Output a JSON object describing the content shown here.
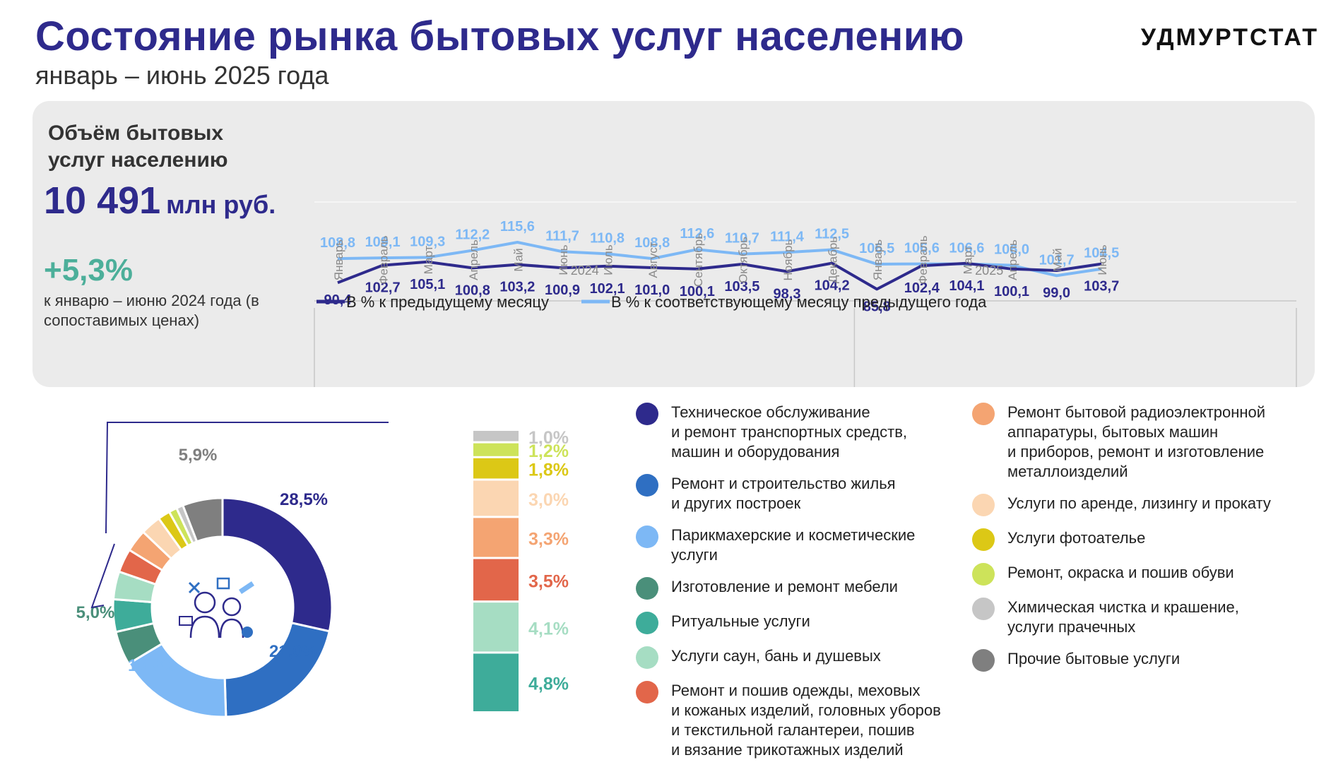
{
  "header": {
    "title": "Состояние рынка бытовых услуг населению",
    "subtitle": "январь – июнь 2025 года",
    "logo": "УДМУРТСТАТ"
  },
  "kpi": {
    "title": "Объём бытовых услуг населению",
    "value": "10 491",
    "unit": "млн руб.",
    "growth": "+5,3%",
    "note": "к январю – июню 2024 года (в сопоставимых ценах)"
  },
  "chart_data": [
    {
      "type": "line",
      "categories": [
        "Январь",
        "Февраль",
        "Март",
        "Апрель",
        "Май",
        "Июнь",
        "Июль",
        "Август",
        "Сентябрь",
        "Октябрь",
        "Ноябрь",
        "Декабрь",
        "Январь",
        "Февраль",
        "Март",
        "Апрель",
        "Май",
        "Июнь"
      ],
      "groups": [
        {
          "label": "2024",
          "count": 12
        },
        {
          "label": "2025",
          "count": 6
        }
      ],
      "series": [
        {
          "name": "В % к предыдущему месяцу",
          "color": "#2e2a8c",
          "values": [
            90.4,
            102.7,
            105.1,
            100.8,
            103.2,
            100.9,
            102.1,
            101.0,
            100.1,
            103.5,
            98.3,
            104.2,
            85.8,
            102.4,
            104.1,
            100.1,
            99.0,
            103.7
          ],
          "labels": [
            "90,4",
            "102,7",
            "105,1",
            "100,8",
            "103,2",
            "100,9",
            "102,1",
            "101,0",
            "100,1",
            "103,5",
            "98,3",
            "104,2",
            "85,8",
            "102,4",
            "104,1",
            "100,1",
            "99,0",
            "103,7"
          ]
        },
        {
          "name": "В % к соответствующему месяцу предыдущего года",
          "color": "#7db8f5",
          "values": [
            108.8,
            109.1,
            109.3,
            112.2,
            115.6,
            111.7,
            110.8,
            108.8,
            112.6,
            110.7,
            111.4,
            112.5,
            106.5,
            106.6,
            106.6,
            106.0,
            101.7,
            104.5
          ],
          "labels": [
            "108,8",
            "109,1",
            "109,3",
            "112,2",
            "115,6",
            "111,7",
            "110,8",
            "108,8",
            "112,6",
            "110,7",
            "111,4",
            "112,5",
            "106,5",
            "106,6",
            "106,6",
            "106,0",
            "101,7",
            "104,5"
          ]
        }
      ]
    },
    {
      "type": "pie",
      "slices": [
        {
          "name": "Техническое обслуживание и ремонт транспортных средств, машин и оборудования",
          "value": 28.5,
          "label": "28,5%",
          "color": "#2e2a8c"
        },
        {
          "name": "Ремонт и строительство жилья и других построек",
          "value": 21.0,
          "label": "21,0%",
          "color": "#2f6fc2"
        },
        {
          "name": "Парикмахерские и косметические услуги",
          "value": 16.9,
          "label": "16,9%",
          "color": "#7db8f5"
        },
        {
          "name": "Изготовление и ремонт мебели",
          "value": 5.0,
          "label": "5,0%",
          "color": "#4a8f7a"
        },
        {
          "name": "Ритуальные услуги",
          "value": 4.8,
          "label": "4,8%",
          "color": "#3eac9a"
        },
        {
          "name": "Услуги саун, бань и душевых",
          "value": 4.1,
          "label": "4,1%",
          "color": "#a6ddc3"
        },
        {
          "name": "Ремонт и пошив одежды, меховых и кожаных изделий, головных уборов и текстильной галантереи, пошив и вязание трикотажных изделий",
          "value": 3.5,
          "label": "3,5%",
          "color": "#e2664a"
        },
        {
          "name": "Ремонт бытовой радиоэлектронной аппаратуры, бытовых машин и приборов, ремонт и изготовление металлоизделий",
          "value": 3.3,
          "label": "3,3%",
          "color": "#f4a472"
        },
        {
          "name": "Услуги по аренде, лизингу и прокату",
          "value": 3.0,
          "label": "3,0%",
          "color": "#fbd6b2"
        },
        {
          "name": "Услуги фотоателье",
          "value": 1.8,
          "label": "1,8%",
          "color": "#dcc816"
        },
        {
          "name": "Ремонт, окраска и пошив обуви",
          "value": 1.2,
          "label": "1,2%",
          "color": "#cde35a"
        },
        {
          "name": "Химическая чистка и крашение, услуги прачечных",
          "value": 1.0,
          "label": "1,0%",
          "color": "#c6c6c6"
        },
        {
          "name": "Прочие бытовые услуги",
          "value": 5.9,
          "label": "5,9%",
          "color": "#7f7f7f"
        }
      ]
    }
  ],
  "legend_line": [
    {
      "label": "В % к предыдущему месяцу",
      "color": "#2e2a8c"
    },
    {
      "label": "В % к соответствующему месяцу предыдущего года",
      "color": "#7db8f5"
    }
  ],
  "legend_left": [
    {
      "label": "Техническое обслуживание и ремонт транспортных средств, машин и оборудования",
      "lines": [
        "Техническое обслуживание",
        "и ремонт транспортных средств,",
        "машин и оборудования"
      ],
      "color": "#2e2a8c"
    },
    {
      "label": "Ремонт и строительство жилья и других построек",
      "lines": [
        "Ремонт и строительство жилья",
        "и других построек"
      ],
      "color": "#2f6fc2"
    },
    {
      "label": "Парикмахерские и косметические услуги",
      "lines": [
        "Парикмахерские и косметические",
        "услуги"
      ],
      "color": "#7db8f5"
    },
    {
      "label": "Изготовление и ремонт мебели",
      "lines": [
        "Изготовление и ремонт мебели"
      ],
      "color": "#4a8f7a"
    },
    {
      "label": "Ритуальные услуги",
      "lines": [
        "Ритуальные услуги"
      ],
      "color": "#3eac9a"
    },
    {
      "label": "Услуги саун, бань и душевых",
      "lines": [
        "Услуги саун, бань и душевых"
      ],
      "color": "#a6ddc3"
    },
    {
      "label": "Ремонт и пошив одежды, меховых и кожаных изделий, головных уборов и текстильной галантереи, пошив и вязание трикотажных изделий",
      "lines": [
        "Ремонт и пошив одежды, меховых",
        "и кожаных изделий, головных уборов",
        "и текстильной галантереи, пошив",
        "и вязание трикотажных изделий"
      ],
      "color": "#e2664a"
    }
  ],
  "legend_right": [
    {
      "label": "Ремонт бытовой радиоэлектронной аппаратуры, бытовых машин и приборов, ремонт и изготовление металлоизделий",
      "lines": [
        "Ремонт бытовой радиоэлектронной",
        "аппаратуры, бытовых машин",
        "и приборов, ремонт и изготовление",
        "металлоизделий"
      ],
      "color": "#f4a472"
    },
    {
      "label": "Услуги по аренде, лизингу и прокату",
      "lines": [
        "Услуги по аренде, лизингу и прокату"
      ],
      "color": "#fbd6b2"
    },
    {
      "label": "Услуги фотоателье",
      "lines": [
        "Услуги фотоателье"
      ],
      "color": "#dcc816"
    },
    {
      "label": "Ремонт, окраска и пошив обуви",
      "lines": [
        "Ремонт, окраска и пошив обуви"
      ],
      "color": "#cde35a"
    },
    {
      "label": "Химическая чистка и крашение, услуги прачечных",
      "lines": [
        "Химическая чистка и крашение,",
        "услуги прачечных"
      ],
      "color": "#c6c6c6"
    },
    {
      "label": "Прочие бытовые услуги",
      "lines": [
        "Прочие бытовые услуги"
      ],
      "color": "#7f7f7f"
    }
  ],
  "stack_bar": {
    "items": [
      {
        "label": "1,0%",
        "value": 1.0,
        "color": "#c6c6c6"
      },
      {
        "label": "1,2%",
        "value": 1.2,
        "color": "#cde35a"
      },
      {
        "label": "1,8%",
        "value": 1.8,
        "color": "#dcc816"
      },
      {
        "label": "3,0%",
        "value": 3.0,
        "color": "#fbd6b2"
      },
      {
        "label": "3,3%",
        "value": 3.3,
        "color": "#f4a472"
      },
      {
        "label": "3,5%",
        "value": 3.5,
        "color": "#e2664a"
      },
      {
        "label": "4,1%",
        "value": 4.1,
        "color": "#a6ddc3"
      },
      {
        "label": "4,8%",
        "value": 4.8,
        "color": "#3eac9a"
      }
    ]
  }
}
